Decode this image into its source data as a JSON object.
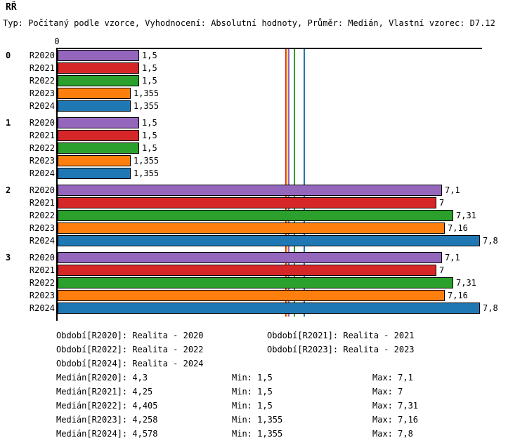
{
  "header": {
    "title": "RŘ",
    "subtitle": "Typ: Počítaný podle vzorce, Vyhodnocení: Absolutní hodnoty, Průměr: Medián, Vlastní vzorec: D7.12"
  },
  "chart_data": {
    "type": "bar",
    "orientation": "horizontal",
    "title": "RŘ",
    "xlabel": "",
    "ylabel": "",
    "xlim": [
      0,
      7.85
    ],
    "grid": false,
    "axis_zero_label": "0",
    "categories": [
      "0",
      "1",
      "2",
      "3"
    ],
    "series": [
      {
        "name": "R2020",
        "color": "#9467bd",
        "values": [
          1.5,
          1.5,
          7.1,
          7.1
        ],
        "median": 4.3,
        "min": 1.5,
        "max": 7.1
      },
      {
        "name": "R2021",
        "color": "#d62728",
        "values": [
          1.5,
          1.5,
          7.0,
          7.0
        ],
        "median": 4.25,
        "min": 1.5,
        "max": 7.0
      },
      {
        "name": "R2022",
        "color": "#2ca02c",
        "values": [
          1.5,
          1.5,
          7.31,
          7.31
        ],
        "median": 4.405,
        "min": 1.5,
        "max": 7.31
      },
      {
        "name": "R2023",
        "color": "#ff7f0e",
        "values": [
          1.355,
          1.355,
          7.16,
          7.16
        ],
        "median": 4.258,
        "min": 1.355,
        "max": 7.16
      },
      {
        "name": "R2024",
        "color": "#1f77b4",
        "values": [
          1.355,
          1.355,
          7.8,
          7.8
        ],
        "median": 4.578,
        "min": 1.355,
        "max": 7.8
      }
    ],
    "value_display": {
      "R2020": [
        "1,5",
        "1,5",
        "7,1",
        "7,1"
      ],
      "R2021": [
        "1,5",
        "1,5",
        "7",
        "7"
      ],
      "R2022": [
        "1,5",
        "1,5",
        "7,31",
        "7,31"
      ],
      "R2023": [
        "1,355",
        "1,355",
        "7,16",
        "7,16"
      ],
      "R2024": [
        "1,355",
        "1,355",
        "7,8",
        "7,8"
      ]
    },
    "median_lines_shown": true,
    "legend_position": "bottom"
  },
  "legend": {
    "entries": [
      "Období[R2020]: Realita - 2020",
      "Období[R2021]: Realita - 2021",
      "Období[R2022]: Realita - 2022",
      "Období[R2023]: Realita - 2023",
      "Období[R2024]: Realita - 2024"
    ]
  },
  "stats_rows": [
    {
      "median": "Medián[R2020]: 4,3",
      "min": "Min: 1,5",
      "max": "Max: 7,1"
    },
    {
      "median": "Medián[R2021]: 4,25",
      "min": "Min: 1,5",
      "max": "Max: 7"
    },
    {
      "median": "Medián[R2022]: 4,405",
      "min": "Min: 1,5",
      "max": "Max: 7,31"
    },
    {
      "median": "Medián[R2023]: 4,258",
      "min": "Min: 1,355",
      "max": "Max: 7,16"
    },
    {
      "median": "Medián[R2024]: 4,578",
      "min": "Min: 1,355",
      "max": "Max: 7,8"
    }
  ]
}
